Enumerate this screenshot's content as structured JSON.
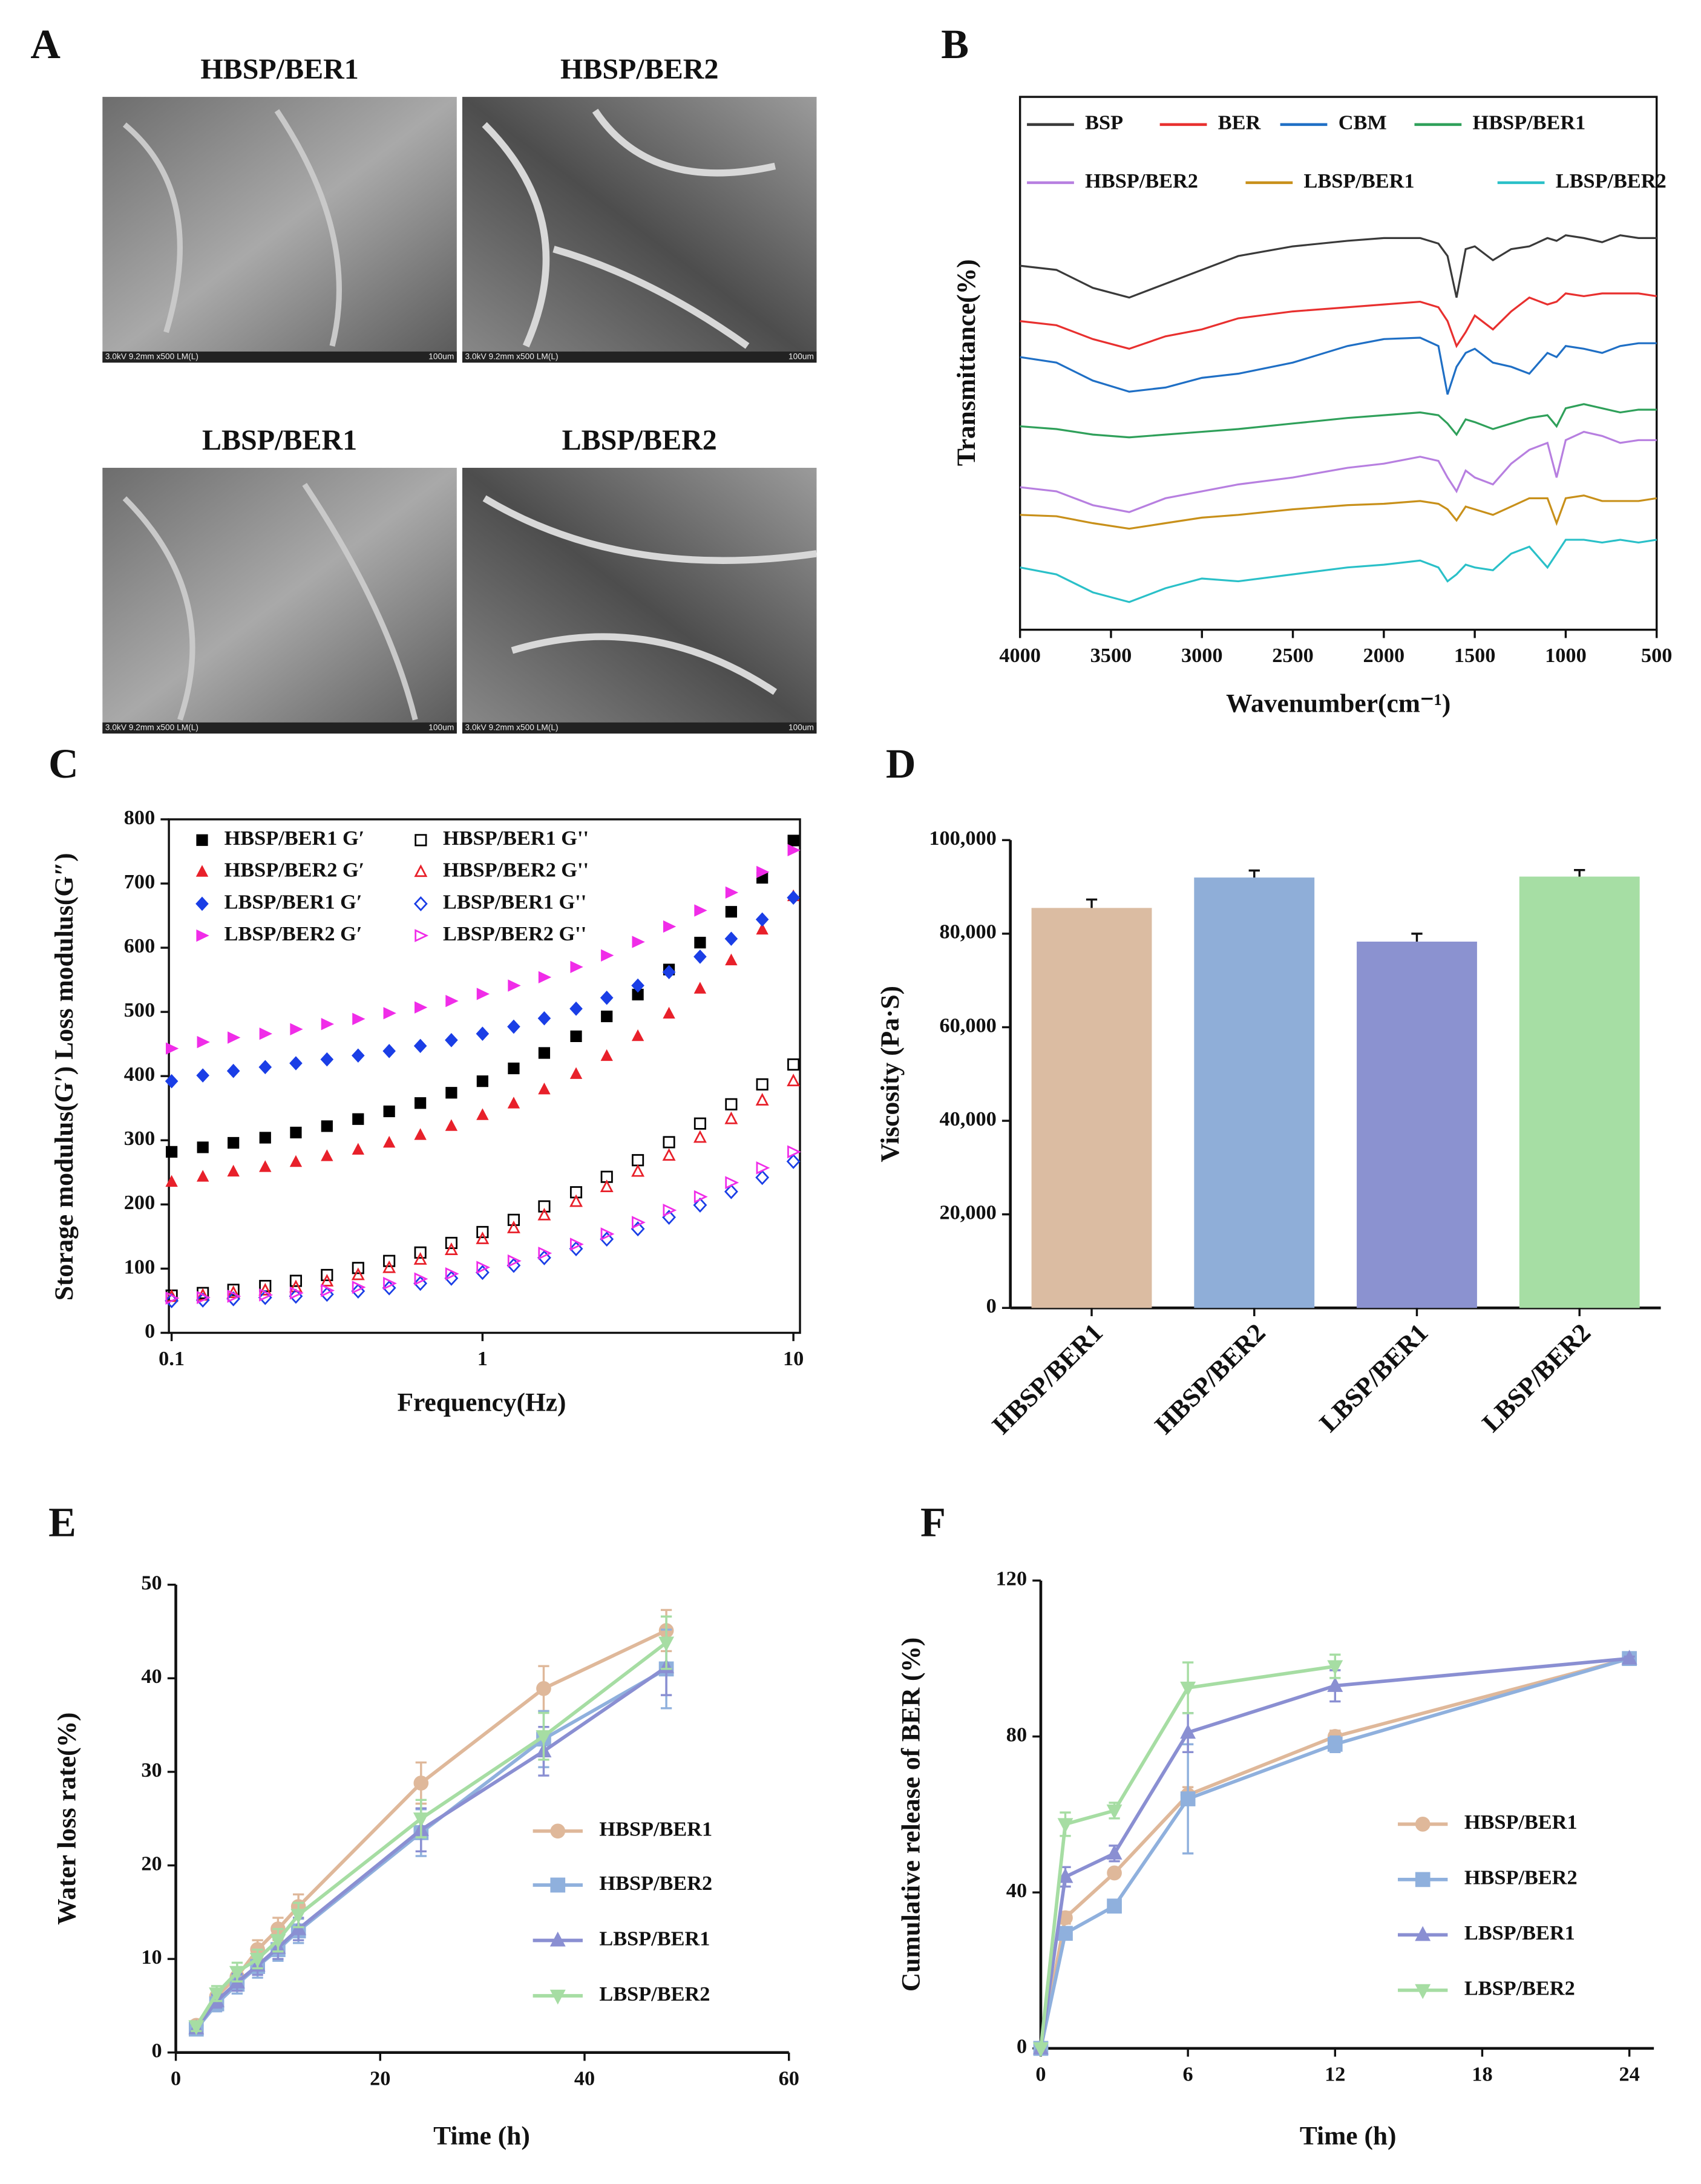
{
  "sem": {
    "panel": "A",
    "caption": "3.0kV 9.2mm x500 LM(L)",
    "scale": "100um",
    "titles": [
      "HBSP/BER1",
      "HBSP/BER2",
      "LBSP/BER1",
      "LBSP/BER2"
    ]
  },
  "chart_data": [
    {
      "panel": "B",
      "type": "line",
      "x_label": "Wavenumber(cm⁻¹)",
      "y_label": "Transmittance(%)",
      "xlim": [
        4000,
        500
      ],
      "ylim": [
        0,
        385
      ],
      "xticks": [
        4000,
        3500,
        3000,
        2500,
        2000,
        1500,
        1000,
        500
      ],
      "x": [
        4000,
        3800,
        3600,
        3400,
        3200,
        3000,
        2800,
        2500,
        2200,
        2000,
        1800,
        1700,
        1650,
        1600,
        1550,
        1500,
        1400,
        1300,
        1200,
        1100,
        1050,
        1000,
        900,
        800,
        700,
        600,
        500
      ],
      "series": [
        {
          "name": "BSP",
          "color": "#3a3a3a",
          "values": [
            263,
            260,
            247,
            240,
            250,
            260,
            270,
            277,
            281,
            283,
            283,
            279,
            270,
            240,
            275,
            277,
            267,
            275,
            277,
            283,
            281,
            285,
            283,
            280,
            285,
            283,
            283
          ]
        },
        {
          "name": "BER",
          "color": "#e8302f",
          "values": [
            223,
            220,
            210,
            203,
            212,
            217,
            225,
            230,
            233,
            235,
            237,
            233,
            223,
            205,
            215,
            227,
            217,
            230,
            240,
            235,
            237,
            243,
            241,
            243,
            243,
            243,
            241
          ]
        },
        {
          "name": "CBM",
          "color": "#1f6fc5",
          "values": [
            197,
            193,
            180,
            172,
            175,
            182,
            185,
            193,
            205,
            210,
            211,
            205,
            170,
            190,
            200,
            203,
            193,
            190,
            185,
            200,
            197,
            205,
            203,
            200,
            205,
            207,
            207
          ]
        },
        {
          "name": "HBSP/BER1",
          "color": "#2fa05a",
          "values": [
            147,
            145,
            141,
            139,
            141,
            143,
            145,
            149,
            153,
            155,
            157,
            155,
            149,
            141,
            152,
            150,
            145,
            149,
            153,
            155,
            147,
            160,
            163,
            160,
            157,
            159,
            159
          ]
        },
        {
          "name": "HBSP/BER2",
          "color": "#b77fe0",
          "values": [
            103,
            100,
            90,
            85,
            95,
            100,
            105,
            110,
            117,
            120,
            125,
            122,
            110,
            100,
            115,
            110,
            105,
            120,
            130,
            135,
            110,
            137,
            143,
            140,
            135,
            137,
            137
          ]
        },
        {
          "name": "LBSP/BER1",
          "color": "#c8901a",
          "values": [
            83,
            82,
            77,
            73,
            77,
            81,
            83,
            87,
            90,
            91,
            93,
            91,
            87,
            79,
            89,
            87,
            83,
            89,
            95,
            95,
            77,
            95,
            97,
            93,
            93,
            93,
            95
          ]
        },
        {
          "name": "LBSP/BER2",
          "color": "#2ac0c8",
          "values": [
            45,
            40,
            27,
            20,
            30,
            37,
            35,
            40,
            45,
            47,
            50,
            45,
            35,
            40,
            47,
            45,
            43,
            55,
            60,
            45,
            55,
            65,
            65,
            63,
            65,
            63,
            65
          ]
        }
      ]
    },
    {
      "panel": "C",
      "type": "scatter",
      "x_label": "Frequency(Hz)",
      "y_label": "Storage modulus(G′)  Loss modulus(G″)",
      "xscale": "log",
      "xlim": [
        0.098,
        10.5
      ],
      "ylim": [
        0,
        800
      ],
      "xticks": [
        0.1,
        1,
        10
      ],
      "yticks": [
        0,
        100,
        200,
        300,
        400,
        500,
        600,
        700,
        800
      ],
      "x": [
        0.1,
        0.126,
        0.158,
        0.2,
        0.251,
        0.316,
        0.398,
        0.501,
        0.631,
        0.794,
        1,
        1.26,
        1.58,
        2,
        2.51,
        3.16,
        3.98,
        5.01,
        6.31,
        7.94,
        10
      ],
      "series": [
        {
          "name": "HBSP/BER1 G′",
          "color": "#000000",
          "marker": "square",
          "filled": true,
          "values": [
            282,
            289,
            296,
            304,
            312,
            322,
            333,
            345,
            358,
            374,
            392,
            412,
            436,
            462,
            493,
            527,
            566,
            608,
            656,
            709,
            767
          ]
        },
        {
          "name": "HBSP/BER1 G''",
          "color": "#000000",
          "marker": "square",
          "filled": false,
          "values": [
            58,
            62,
            67,
            73,
            81,
            90,
            101,
            112,
            125,
            140,
            157,
            176,
            197,
            219,
            243,
            269,
            297,
            326,
            356,
            387,
            418
          ]
        },
        {
          "name": "HBSP/BER2 G′",
          "color": "#e8202a",
          "marker": "triangle",
          "filled": true,
          "values": [
            235,
            243,
            251,
            258,
            266,
            275,
            285,
            296,
            308,
            322,
            339,
            357,
            379,
            403,
            431,
            462,
            497,
            536,
            580,
            628,
            680
          ]
        },
        {
          "name": "HBSP/BER2 G''",
          "color": "#e8202a",
          "marker": "triangle",
          "filled": false,
          "values": [
            56,
            58,
            62,
            66,
            71,
            80,
            90,
            101,
            114,
            129,
            146,
            163,
            183,
            204,
            227,
            251,
            276,
            304,
            333,
            362,
            392
          ]
        },
        {
          "name": "LBSP/BER1 G′",
          "color": "#1a3ee6",
          "marker": "diamond",
          "filled": true,
          "values": [
            392,
            401,
            408,
            414,
            420,
            426,
            432,
            439,
            447,
            456,
            466,
            477,
            490,
            505,
            522,
            541,
            562,
            586,
            614,
            644,
            678
          ]
        },
        {
          "name": "LBSP/BER1 G''",
          "color": "#1a3ee6",
          "marker": "diamond",
          "filled": false,
          "values": [
            50,
            51,
            53,
            55,
            57,
            60,
            65,
            70,
            77,
            85,
            94,
            105,
            117,
            131,
            146,
            162,
            180,
            199,
            220,
            242,
            267
          ]
        },
        {
          "name": "LBSP/BER2 G′",
          "color": "#f02ce8",
          "marker": "triangle-right",
          "filled": true,
          "values": [
            443,
            453,
            460,
            466,
            473,
            481,
            489,
            498,
            507,
            517,
            528,
            541,
            554,
            570,
            588,
            609,
            633,
            658,
            686,
            718,
            752
          ]
        },
        {
          "name": "LBSP/BER2 G''",
          "color": "#f02ce8",
          "marker": "triangle-right",
          "filled": false,
          "values": [
            54,
            55,
            57,
            59,
            62,
            66,
            71,
            77,
            84,
            92,
            102,
            112,
            124,
            138,
            154,
            172,
            191,
            212,
            234,
            257,
            282
          ]
        }
      ]
    },
    {
      "panel": "D",
      "type": "bar",
      "y_label": "Viscosity (Pa·S)",
      "categories": [
        "HBSP/BER1",
        "HBSP/BER2",
        "LBSP/BER1",
        "LBSP/BER2"
      ],
      "values": [
        85500,
        92000,
        78300,
        92200
      ],
      "errors": [
        1800,
        1500,
        1700,
        1400
      ],
      "colors": [
        "#dbbca2",
        "#8faed8",
        "#8b92d0",
        "#a6dea4"
      ],
      "ylim": [
        0,
        100000
      ],
      "yticks": [
        0,
        {
          "value": 20000,
          "label": "20,000"
        },
        {
          "value": 40000,
          "label": "40,000"
        },
        {
          "value": 60000,
          "label": "60,000"
        },
        {
          "value": 80000,
          "label": "80,000"
        },
        {
          "value": 100000,
          "label": "100,000"
        }
      ]
    },
    {
      "panel": "E",
      "type": "line",
      "x_label": "Time (h)",
      "y_label": "Water loss rate(%)",
      "xlim": [
        0,
        60
      ],
      "ylim": [
        0,
        50
      ],
      "xticks": [
        0,
        20,
        40,
        60
      ],
      "yticks": [
        0,
        10,
        20,
        30,
        40,
        50
      ],
      "x": [
        2,
        4,
        6,
        8,
        10,
        12,
        24,
        36,
        48
      ],
      "series": [
        {
          "name": "HBSP/BER1",
          "color": "#dfb89a",
          "marker": "circle",
          "filled": true,
          "values": [
            2.9,
            6,
            8.1,
            11,
            13.2,
            15.6,
            28.8,
            38.9,
            45.1
          ],
          "errors": [
            0.5,
            0.8,
            1,
            1,
            1.2,
            1.3,
            2.2,
            2.4,
            2.2
          ]
        },
        {
          "name": "HBSP/BER2",
          "color": "#8fb0dd",
          "marker": "square",
          "filled": true,
          "values": [
            2.5,
            5.2,
            7.3,
            9.2,
            11,
            13,
            23.5,
            33.5,
            41
          ],
          "errors": [
            0.4,
            0.8,
            1,
            1.2,
            1.2,
            1.3,
            2.5,
            3,
            4.2
          ]
        },
        {
          "name": "LBSP/BER1",
          "color": "#8a8fd2",
          "marker": "triangle",
          "filled": true,
          "values": [
            2.6,
            5.5,
            7.5,
            9.3,
            11.2,
            13.2,
            23.8,
            32.2,
            41.2
          ],
          "errors": [
            0.4,
            0.7,
            0.9,
            1,
            1.2,
            1.2,
            2.3,
            2.6,
            3
          ]
        },
        {
          "name": "LBSP/BER2",
          "color": "#a6dda3",
          "marker": "triangle-down",
          "filled": true,
          "values": [
            2.8,
            6.3,
            8.6,
            10,
            12,
            14.7,
            25,
            33.8,
            43.8
          ],
          "errors": [
            0.5,
            0.8,
            1,
            1,
            1.2,
            1.3,
            2,
            2.5,
            2.8
          ]
        }
      ]
    },
    {
      "panel": "F",
      "type": "line",
      "x_label": "Time (h)",
      "y_label": "Cumulative release of BER (%)",
      "xlim": [
        0,
        25
      ],
      "ylim": [
        0,
        120
      ],
      "xticks": [
        0,
        6,
        12,
        18,
        24
      ],
      "yticks": [
        0,
        40,
        80,
        120
      ],
      "x": [
        0,
        1,
        3,
        6,
        12,
        24
      ],
      "series": [
        {
          "name": "HBSP/BER1",
          "color": "#dfb89a",
          "marker": "circle",
          "filled": true,
          "values": [
            0,
            33.5,
            45,
            65,
            80,
            100
          ],
          "errors": [
            0,
            1.5,
            1,
            2,
            1.5,
            0.5
          ]
        },
        {
          "name": "HBSP/BER2",
          "color": "#8fb0dd",
          "marker": "square",
          "filled": true,
          "values": [
            0,
            29.5,
            36.5,
            64,
            78,
            100
          ],
          "errors": [
            0,
            1.5,
            1,
            14,
            2,
            0.5
          ]
        },
        {
          "name": "LBSP/BER1",
          "color": "#8a8fd2",
          "marker": "triangle",
          "filled": true,
          "values": [
            0,
            44,
            50,
            81,
            93,
            100
          ],
          "errors": [
            0,
            2.5,
            2,
            5,
            4,
            0.5
          ]
        },
        {
          "name": "LBSP/BER2",
          "color": "#a6dda3",
          "marker": "triangle-down",
          "filled": true,
          "values": [
            0,
            57.5,
            61,
            92.5,
            98,
            null
          ],
          "errors": [
            0,
            3,
            2,
            6.5,
            3,
            null
          ]
        }
      ]
    }
  ]
}
